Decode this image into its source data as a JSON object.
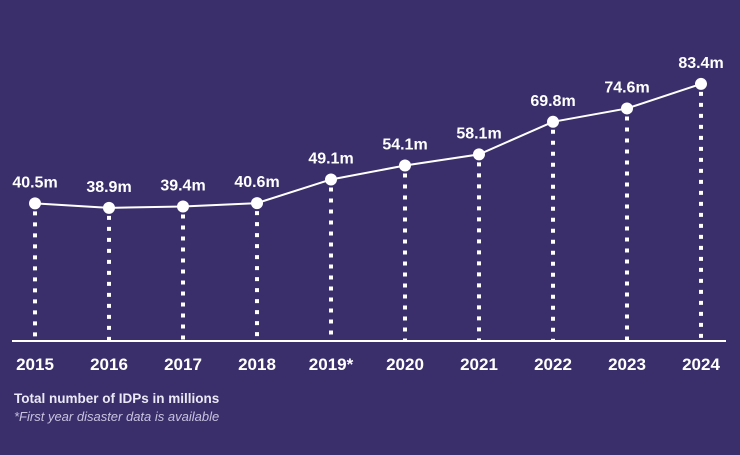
{
  "chart_data": {
    "type": "line",
    "title": "",
    "xlabel": "",
    "ylabel": "",
    "categories": [
      "2015",
      "2016",
      "2017",
      "2018",
      "2019*",
      "2020",
      "2021",
      "2022",
      "2023",
      "2024"
    ],
    "series": [
      {
        "name": "Total number of IDPs in millions",
        "values": [
          40.5,
          38.9,
          39.4,
          40.6,
          49.1,
          54.1,
          58.1,
          69.8,
          74.6,
          83.4
        ],
        "labels": [
          "40.5m",
          "38.9m",
          "39.4m",
          "40.6m",
          "49.1m",
          "54.1m",
          "58.1m",
          "69.8m",
          "74.6m",
          "83.4m"
        ]
      }
    ],
    "ylim": [
      0,
      90
    ],
    "grid": false,
    "legend": "none",
    "line_color": "#ffffff",
    "background_color": "#3a2f6b"
  },
  "footnotes": {
    "main": "Total number of IDPs in millions",
    "sub": "*First year disaster data is available"
  }
}
